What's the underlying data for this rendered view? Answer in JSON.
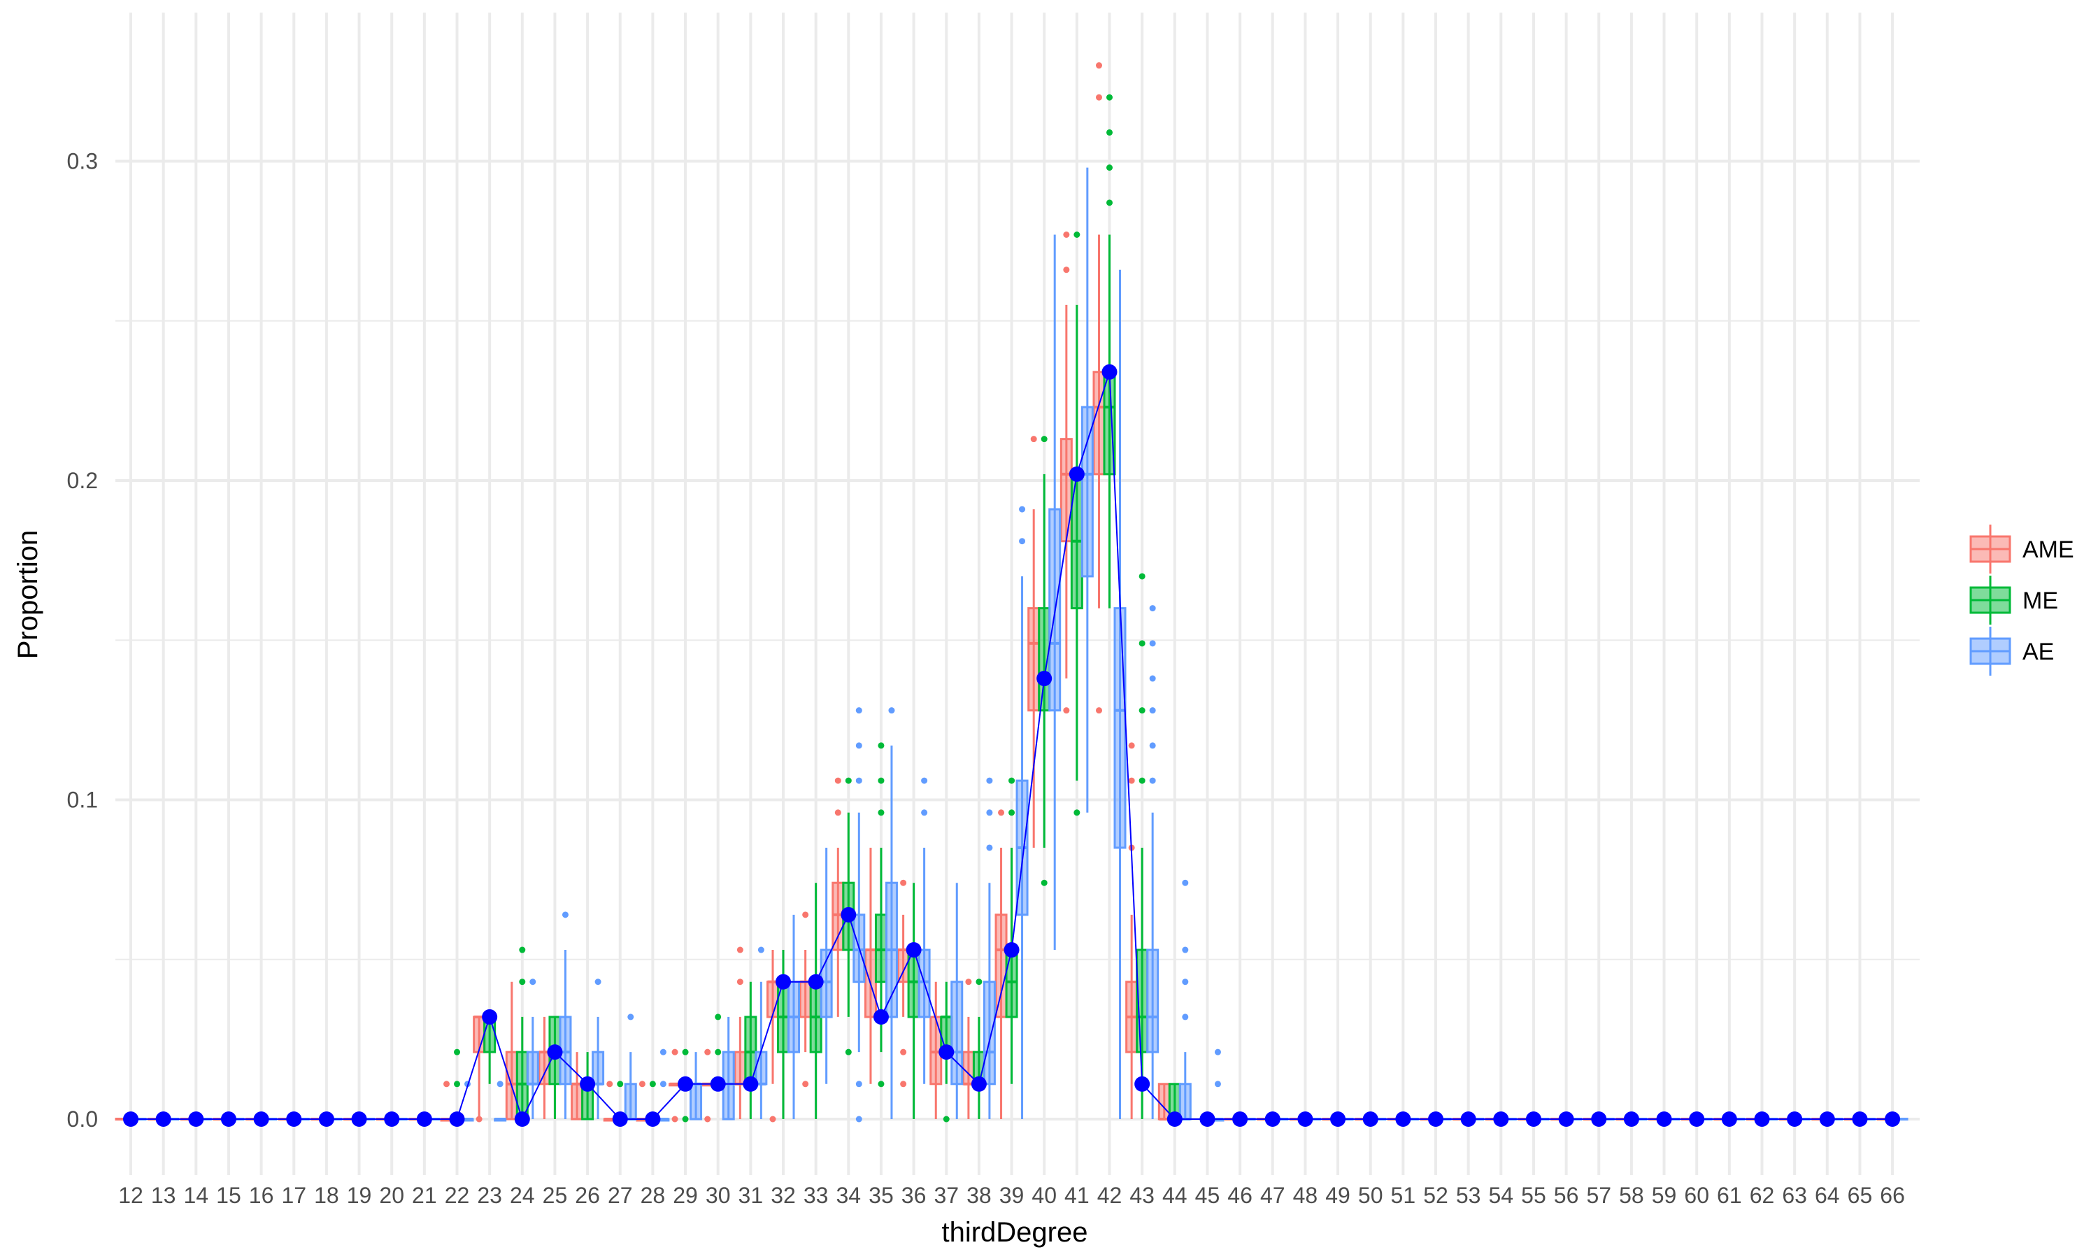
{
  "chart_data": {
    "type": "boxplot",
    "xlabel": "thirdDegree",
    "ylabel": "Proportion",
    "ylim": [
      -0.018,
      0.335
    ],
    "yticks": [
      0.0,
      0.1,
      0.2,
      0.3
    ],
    "ytick_labels": [
      "0.0",
      "0.1",
      "0.2",
      "0.3"
    ],
    "grid": true,
    "legend_position": "right",
    "categories": [
      "12",
      "13",
      "14",
      "15",
      "16",
      "17",
      "18",
      "19",
      "20",
      "21",
      "22",
      "23",
      "24",
      "25",
      "26",
      "27",
      "28",
      "29",
      "30",
      "31",
      "32",
      "33",
      "34",
      "35",
      "36",
      "37",
      "38",
      "39",
      "40",
      "41",
      "42",
      "43",
      "44",
      "45",
      "46",
      "47",
      "48",
      "49",
      "50",
      "51",
      "52",
      "53",
      "54",
      "55",
      "56",
      "57",
      "58",
      "59",
      "60",
      "61",
      "62",
      "63",
      "64",
      "65",
      "66"
    ],
    "series": [
      {
        "name": "AME",
        "color": "#F8766D",
        "fill": "#F8766D",
        "boxes": [
          {
            "x": "22",
            "q1": 0.0,
            "median": 0.0,
            "q3": 0.0,
            "lo": 0.0,
            "hi": 0.0,
            "outliers": [
              0.011
            ]
          },
          {
            "x": "23",
            "q1": 0.021,
            "median": 0.032,
            "q3": 0.032,
            "lo": 0.0,
            "hi": 0.032,
            "outliers": [
              0.0
            ]
          },
          {
            "x": "24",
            "q1": 0.0,
            "median": 0.011,
            "q3": 0.021,
            "lo": 0.0,
            "hi": 0.043,
            "outliers": []
          },
          {
            "x": "25",
            "q1": 0.011,
            "median": 0.021,
            "q3": 0.021,
            "lo": 0.0,
            "hi": 0.032,
            "outliers": []
          },
          {
            "x": "26",
            "q1": 0.0,
            "median": 0.011,
            "q3": 0.011,
            "lo": 0.0,
            "hi": 0.021,
            "outliers": []
          },
          {
            "x": "27",
            "q1": 0.0,
            "median": 0.0,
            "q3": 0.0,
            "lo": 0.0,
            "hi": 0.0,
            "outliers": [
              0.011
            ]
          },
          {
            "x": "28",
            "q1": 0.0,
            "median": 0.0,
            "q3": 0.0,
            "lo": 0.0,
            "hi": 0.0,
            "outliers": [
              0.011
            ]
          },
          {
            "x": "29",
            "q1": 0.011,
            "median": 0.011,
            "q3": 0.011,
            "lo": 0.011,
            "hi": 0.011,
            "outliers": [
              0.0,
              0.021
            ]
          },
          {
            "x": "30",
            "q1": 0.011,
            "median": 0.011,
            "q3": 0.011,
            "lo": 0.011,
            "hi": 0.011,
            "outliers": [
              0.0,
              0.021
            ]
          },
          {
            "x": "31",
            "q1": 0.011,
            "median": 0.011,
            "q3": 0.021,
            "lo": 0.0,
            "hi": 0.032,
            "outliers": [
              0.043,
              0.053
            ]
          },
          {
            "x": "32",
            "q1": 0.032,
            "median": 0.043,
            "q3": 0.043,
            "lo": 0.011,
            "hi": 0.053,
            "outliers": [
              0.0
            ]
          },
          {
            "x": "33",
            "q1": 0.032,
            "median": 0.043,
            "q3": 0.043,
            "lo": 0.021,
            "hi": 0.053,
            "outliers": [
              0.011,
              0.064
            ]
          },
          {
            "x": "34",
            "q1": 0.053,
            "median": 0.064,
            "q3": 0.074,
            "lo": 0.032,
            "hi": 0.085,
            "outliers": [
              0.096,
              0.106
            ]
          },
          {
            "x": "35",
            "q1": 0.032,
            "median": 0.053,
            "q3": 0.053,
            "lo": 0.011,
            "hi": 0.085,
            "outliers": []
          },
          {
            "x": "36",
            "q1": 0.043,
            "median": 0.053,
            "q3": 0.053,
            "lo": 0.032,
            "hi": 0.064,
            "outliers": [
              0.011,
              0.021,
              0.074
            ]
          },
          {
            "x": "37",
            "q1": 0.011,
            "median": 0.021,
            "q3": 0.032,
            "lo": 0.0,
            "hi": 0.043,
            "outliers": []
          },
          {
            "x": "38",
            "q1": 0.011,
            "median": 0.011,
            "q3": 0.021,
            "lo": 0.0,
            "hi": 0.032,
            "outliers": [
              0.043
            ]
          },
          {
            "x": "39",
            "q1": 0.032,
            "median": 0.053,
            "q3": 0.064,
            "lo": 0.0,
            "hi": 0.085,
            "outliers": [
              0.096
            ]
          },
          {
            "x": "40",
            "q1": 0.128,
            "median": 0.149,
            "q3": 0.16,
            "lo": 0.085,
            "hi": 0.191,
            "outliers": [
              0.213
            ]
          },
          {
            "x": "41",
            "q1": 0.181,
            "median": 0.202,
            "q3": 0.213,
            "lo": 0.138,
            "hi": 0.255,
            "outliers": [
              0.128,
              0.266,
              0.277
            ]
          },
          {
            "x": "42",
            "q1": 0.202,
            "median": 0.223,
            "q3": 0.234,
            "lo": 0.16,
            "hi": 0.277,
            "outliers": [
              0.128,
              0.32,
              0.33
            ]
          },
          {
            "x": "43",
            "q1": 0.021,
            "median": 0.032,
            "q3": 0.043,
            "lo": 0.0,
            "hi": 0.064,
            "outliers": [
              0.085,
              0.106,
              0.117
            ]
          },
          {
            "x": "44",
            "q1": 0.0,
            "median": 0.0,
            "q3": 0.011,
            "lo": 0.0,
            "hi": 0.011,
            "outliers": []
          }
        ]
      },
      {
        "name": "ME",
        "color": "#00BA38",
        "fill": "#00BA38",
        "boxes": [
          {
            "x": "22",
            "q1": 0.0,
            "median": 0.0,
            "q3": 0.0,
            "lo": 0.0,
            "hi": 0.0,
            "outliers": [
              0.011,
              0.021
            ]
          },
          {
            "x": "23",
            "q1": 0.021,
            "median": 0.032,
            "q3": 0.032,
            "lo": 0.011,
            "hi": 0.032,
            "outliers": []
          },
          {
            "x": "24",
            "q1": 0.0,
            "median": 0.011,
            "q3": 0.021,
            "lo": 0.0,
            "hi": 0.032,
            "outliers": [
              0.043,
              0.053
            ]
          },
          {
            "x": "25",
            "q1": 0.011,
            "median": 0.021,
            "q3": 0.032,
            "lo": 0.0,
            "hi": 0.032,
            "outliers": []
          },
          {
            "x": "26",
            "q1": 0.0,
            "median": 0.011,
            "q3": 0.011,
            "lo": 0.0,
            "hi": 0.021,
            "outliers": []
          },
          {
            "x": "27",
            "q1": 0.0,
            "median": 0.0,
            "q3": 0.0,
            "lo": 0.0,
            "hi": 0.0,
            "outliers": [
              0.011
            ]
          },
          {
            "x": "28",
            "q1": 0.0,
            "median": 0.0,
            "q3": 0.0,
            "lo": 0.0,
            "hi": 0.0,
            "outliers": [
              0.011
            ]
          },
          {
            "x": "29",
            "q1": 0.011,
            "median": 0.011,
            "q3": 0.011,
            "lo": 0.011,
            "hi": 0.011,
            "outliers": [
              0.0,
              0.021
            ]
          },
          {
            "x": "30",
            "q1": 0.011,
            "median": 0.011,
            "q3": 0.011,
            "lo": 0.011,
            "hi": 0.011,
            "outliers": [
              0.021,
              0.032
            ]
          },
          {
            "x": "31",
            "q1": 0.011,
            "median": 0.021,
            "q3": 0.032,
            "lo": 0.0,
            "hi": 0.043,
            "outliers": []
          },
          {
            "x": "32",
            "q1": 0.021,
            "median": 0.032,
            "q3": 0.043,
            "lo": 0.0,
            "hi": 0.053,
            "outliers": []
          },
          {
            "x": "33",
            "q1": 0.021,
            "median": 0.032,
            "q3": 0.043,
            "lo": 0.0,
            "hi": 0.074,
            "outliers": []
          },
          {
            "x": "34",
            "q1": 0.053,
            "median": 0.064,
            "q3": 0.074,
            "lo": 0.032,
            "hi": 0.096,
            "outliers": [
              0.021,
              0.106
            ]
          },
          {
            "x": "35",
            "q1": 0.043,
            "median": 0.053,
            "q3": 0.064,
            "lo": 0.021,
            "hi": 0.085,
            "outliers": [
              0.011,
              0.096,
              0.106,
              0.117
            ]
          },
          {
            "x": "36",
            "q1": 0.032,
            "median": 0.043,
            "q3": 0.053,
            "lo": 0.0,
            "hi": 0.074,
            "outliers": []
          },
          {
            "x": "37",
            "q1": 0.021,
            "median": 0.032,
            "q3": 0.032,
            "lo": 0.011,
            "hi": 0.043,
            "outliers": [
              0.0
            ]
          },
          {
            "x": "38",
            "q1": 0.011,
            "median": 0.011,
            "q3": 0.021,
            "lo": 0.0,
            "hi": 0.032,
            "outliers": [
              0.043
            ]
          },
          {
            "x": "39",
            "q1": 0.032,
            "median": 0.043,
            "q3": 0.053,
            "lo": 0.011,
            "hi": 0.085,
            "outliers": [
              0.096,
              0.106
            ]
          },
          {
            "x": "40",
            "q1": 0.128,
            "median": 0.138,
            "q3": 0.16,
            "lo": 0.085,
            "hi": 0.202,
            "outliers": [
              0.074,
              0.213
            ]
          },
          {
            "x": "41",
            "q1": 0.16,
            "median": 0.181,
            "q3": 0.202,
            "lo": 0.106,
            "hi": 0.255,
            "outliers": [
              0.096,
              0.277
            ]
          },
          {
            "x": "42",
            "q1": 0.202,
            "median": 0.223,
            "q3": 0.234,
            "lo": 0.16,
            "hi": 0.277,
            "outliers": [
              0.287,
              0.298,
              0.309,
              0.32
            ]
          },
          {
            "x": "43",
            "q1": 0.021,
            "median": 0.032,
            "q3": 0.053,
            "lo": 0.0,
            "hi": 0.085,
            "outliers": [
              0.106,
              0.128,
              0.149,
              0.17
            ]
          },
          {
            "x": "44",
            "q1": 0.0,
            "median": 0.0,
            "q3": 0.011,
            "lo": 0.0,
            "hi": 0.011,
            "outliers": []
          }
        ]
      },
      {
        "name": "AE",
        "color": "#619CFF",
        "fill": "#619CFF",
        "boxes": [
          {
            "x": "22",
            "q1": 0.0,
            "median": 0.0,
            "q3": 0.0,
            "lo": 0.0,
            "hi": 0.0,
            "outliers": [
              0.011
            ]
          },
          {
            "x": "23",
            "q1": 0.0,
            "median": 0.0,
            "q3": 0.0,
            "lo": 0.0,
            "hi": 0.0,
            "outliers": [
              0.011
            ]
          },
          {
            "x": "24",
            "q1": 0.011,
            "median": 0.011,
            "q3": 0.021,
            "lo": 0.0,
            "hi": 0.032,
            "outliers": [
              0.043
            ]
          },
          {
            "x": "25",
            "q1": 0.011,
            "median": 0.021,
            "q3": 0.032,
            "lo": 0.0,
            "hi": 0.053,
            "outliers": [
              0.064
            ]
          },
          {
            "x": "26",
            "q1": 0.011,
            "median": 0.011,
            "q3": 0.021,
            "lo": 0.0,
            "hi": 0.032,
            "outliers": [
              0.043
            ]
          },
          {
            "x": "27",
            "q1": 0.0,
            "median": 0.0,
            "q3": 0.011,
            "lo": 0.0,
            "hi": 0.021,
            "outliers": [
              0.032
            ]
          },
          {
            "x": "28",
            "q1": 0.0,
            "median": 0.0,
            "q3": 0.0,
            "lo": 0.0,
            "hi": 0.0,
            "outliers": [
              0.011,
              0.021
            ]
          },
          {
            "x": "29",
            "q1": 0.0,
            "median": 0.011,
            "q3": 0.011,
            "lo": 0.0,
            "hi": 0.021,
            "outliers": []
          },
          {
            "x": "30",
            "q1": 0.0,
            "median": 0.011,
            "q3": 0.021,
            "lo": 0.0,
            "hi": 0.032,
            "outliers": []
          },
          {
            "x": "31",
            "q1": 0.011,
            "median": 0.011,
            "q3": 0.021,
            "lo": 0.0,
            "hi": 0.043,
            "outliers": [
              0.053
            ]
          },
          {
            "x": "32",
            "q1": 0.021,
            "median": 0.032,
            "q3": 0.043,
            "lo": 0.0,
            "hi": 0.064,
            "outliers": []
          },
          {
            "x": "33",
            "q1": 0.032,
            "median": 0.043,
            "q3": 0.053,
            "lo": 0.011,
            "hi": 0.085,
            "outliers": []
          },
          {
            "x": "34",
            "q1": 0.043,
            "median": 0.053,
            "q3": 0.064,
            "lo": 0.021,
            "hi": 0.096,
            "outliers": [
              0.0,
              0.011,
              0.106,
              0.117,
              0.128
            ]
          },
          {
            "x": "35",
            "q1": 0.032,
            "median": 0.053,
            "q3": 0.074,
            "lo": 0.0,
            "hi": 0.117,
            "outliers": [
              0.128
            ]
          },
          {
            "x": "36",
            "q1": 0.032,
            "median": 0.043,
            "q3": 0.053,
            "lo": 0.011,
            "hi": 0.085,
            "outliers": [
              0.096,
              0.106
            ]
          },
          {
            "x": "37",
            "q1": 0.011,
            "median": 0.021,
            "q3": 0.043,
            "lo": 0.0,
            "hi": 0.074,
            "outliers": []
          },
          {
            "x": "38",
            "q1": 0.011,
            "median": 0.021,
            "q3": 0.043,
            "lo": 0.0,
            "hi": 0.074,
            "outliers": [
              0.085,
              0.096,
              0.106
            ]
          },
          {
            "x": "39",
            "q1": 0.064,
            "median": 0.085,
            "q3": 0.106,
            "lo": 0.0,
            "hi": 0.17,
            "outliers": [
              0.181,
              0.191
            ]
          },
          {
            "x": "40",
            "q1": 0.128,
            "median": 0.149,
            "q3": 0.191,
            "lo": 0.053,
            "hi": 0.277,
            "outliers": []
          },
          {
            "x": "41",
            "q1": 0.17,
            "median": 0.202,
            "q3": 0.223,
            "lo": 0.096,
            "hi": 0.298,
            "outliers": []
          },
          {
            "x": "42",
            "q1": 0.085,
            "median": 0.128,
            "q3": 0.16,
            "lo": 0.0,
            "hi": 0.266,
            "outliers": []
          },
          {
            "x": "43",
            "q1": 0.021,
            "median": 0.032,
            "q3": 0.053,
            "lo": 0.0,
            "hi": 0.096,
            "outliers": [
              0.106,
              0.117,
              0.128,
              0.138,
              0.149,
              0.16
            ]
          },
          {
            "x": "44",
            "q1": 0.0,
            "median": 0.0,
            "q3": 0.011,
            "lo": 0.0,
            "hi": 0.021,
            "outliers": [
              0.032,
              0.043,
              0.053,
              0.074
            ]
          },
          {
            "x": "45",
            "q1": 0.0,
            "median": 0.0,
            "q3": 0.0,
            "lo": 0.0,
            "hi": 0.0,
            "outliers": [
              0.011,
              0.021
            ]
          }
        ]
      }
    ],
    "mean_line": {
      "color": "#0000FF",
      "x": [
        "12",
        "13",
        "14",
        "15",
        "16",
        "17",
        "18",
        "19",
        "20",
        "21",
        "22",
        "23",
        "24",
        "25",
        "26",
        "27",
        "28",
        "29",
        "30",
        "31",
        "32",
        "33",
        "34",
        "35",
        "36",
        "37",
        "38",
        "39",
        "40",
        "41",
        "42",
        "43",
        "44",
        "45",
        "46",
        "47",
        "48",
        "49",
        "50",
        "51",
        "52",
        "53",
        "54",
        "55",
        "56",
        "57",
        "58",
        "59",
        "60",
        "61",
        "62",
        "63",
        "64",
        "65",
        "66"
      ],
      "y": [
        0,
        0,
        0,
        0,
        0,
        0,
        0,
        0,
        0,
        0,
        0,
        0.032,
        0.0,
        0.021,
        0.011,
        0.0,
        0.0,
        0.011,
        0.011,
        0.011,
        0.043,
        0.043,
        0.064,
        0.032,
        0.053,
        0.021,
        0.011,
        0.053,
        0.138,
        0.202,
        0.234,
        0.011,
        0.0,
        0,
        0,
        0,
        0,
        0,
        0,
        0,
        0,
        0,
        0,
        0,
        0,
        0,
        0,
        0,
        0,
        0,
        0,
        0,
        0,
        0,
        0
      ]
    }
  }
}
